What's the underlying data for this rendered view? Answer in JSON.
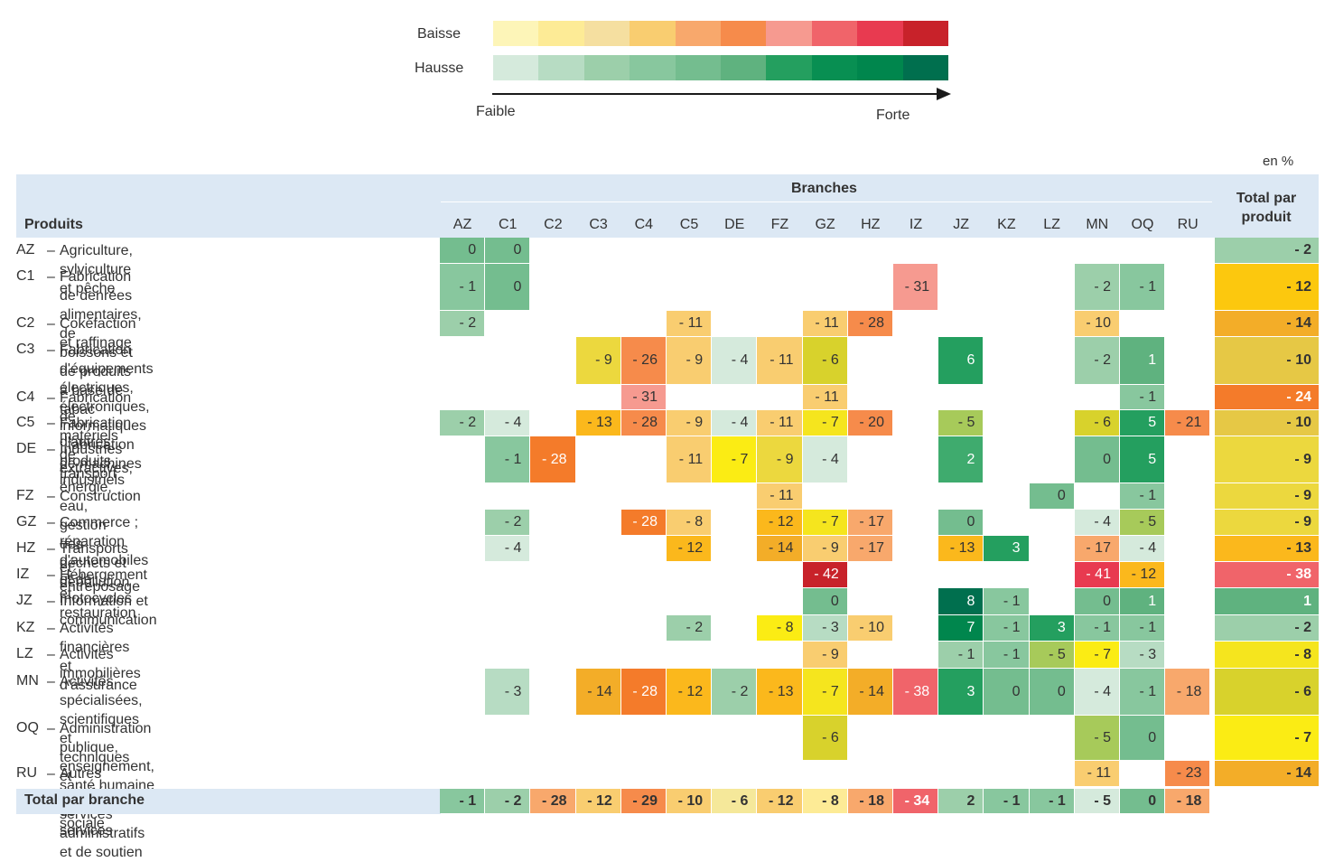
{
  "legend": {
    "baisse_label": "Baisse",
    "hausse_label": "Hausse",
    "low_label": "Faible",
    "high_label": "Forte",
    "baisse_colors": [
      "#fdf5b8",
      "#fdeb96",
      "#f5dfa0",
      "#f9cd70",
      "#f8a86c",
      "#f68b4b",
      "#f69a90",
      "#f0646a",
      "#e83a50",
      "#c8222a"
    ],
    "hausse_colors": [
      "#d5eadc",
      "#b7dcc3",
      "#9ccfaa",
      "#88c79e",
      "#74bd8f",
      "#5fb27f",
      "#249f5f",
      "#088f52",
      "#00864d",
      "#006f4e"
    ]
  },
  "unit_label": "en %",
  "header": {
    "produits_label": "Produits",
    "branches_label": "Branches",
    "total_label": "Total par\nproduit"
  },
  "chart_data": {
    "type": "heatmap",
    "columns": [
      "AZ",
      "C1",
      "C2",
      "C3",
      "C4",
      "C5",
      "DE",
      "FZ",
      "GZ",
      "HZ",
      "IZ",
      "JZ",
      "KZ",
      "LZ",
      "MN",
      "OQ",
      "RU"
    ],
    "rows": [
      {
        "code": "AZ",
        "label": "Agriculture, sylviculture et pêche",
        "cells": {
          "AZ": [
            "0",
            "#74bd8f"
          ],
          "C1": [
            "0",
            "#74bd8f"
          ]
        },
        "total": [
          "- 2",
          "#9ccfaa"
        ]
      },
      {
        "code": "C1",
        "label": "Fabrication de denrées alimentaires, de\nboissons et de produits à base de tabac",
        "cells": {
          "AZ": [
            "- 1",
            "#88c79e"
          ],
          "C1": [
            "0",
            "#74bd8f"
          ],
          "IZ": [
            "- 31",
            "#f69a90"
          ],
          "MN": [
            "- 2",
            "#9ccfaa"
          ],
          "OQ": [
            "- 1",
            "#88c79e"
          ]
        },
        "total": [
          "- 12",
          "#fcc80e"
        ]
      },
      {
        "code": "C2",
        "label": "Cokéfaction et raffinage",
        "cells": {
          "AZ": [
            "- 2",
            "#9ccfaa"
          ],
          "C5": [
            "- 11",
            "#f9cd70"
          ],
          "GZ": [
            "- 11",
            "#f9cd70"
          ],
          "HZ": [
            "- 28",
            "#f68b4b"
          ],
          "MN": [
            "- 10",
            "#f9cd70"
          ]
        },
        "total": [
          "- 14",
          "#f3ad28"
        ]
      },
      {
        "code": "C3",
        "label": "Fabrication d'équipements électriques, électroniques,\ninformatiques ; fabrication de machines",
        "cells": {
          "C3": [
            "- 9",
            "#ecd83e"
          ],
          "C4": [
            "- 26",
            "#f68b4b"
          ],
          "C5": [
            "- 9",
            "#f9cd70"
          ],
          "DE": [
            "- 4",
            "#d5eadc"
          ],
          "FZ": [
            "- 11",
            "#f9cd70"
          ],
          "GZ": [
            "- 6",
            "#d8d22c"
          ],
          "JZ": [
            "6",
            "#249f5f"
          ],
          "MN": [
            "- 2",
            "#9ccfaa"
          ],
          "OQ": [
            "1",
            "#5fb27f"
          ]
        },
        "total": [
          "- 10",
          "#e6c845"
        ]
      },
      {
        "code": "C4",
        "label": "Fabrication de matériels de transport",
        "cells": {
          "C4": [
            "- 31",
            "#f69a90"
          ],
          "GZ": [
            "- 11",
            "#f9cd70"
          ],
          "OQ": [
            "- 1",
            "#88c79e"
          ]
        },
        "total": [
          "- 24",
          "#f47b2a"
        ]
      },
      {
        "code": "C5",
        "label": "Fabrication d'autres produits industriels",
        "cells": {
          "AZ": [
            "- 2",
            "#9ccfaa"
          ],
          "C1": [
            "- 4",
            "#d5eadc"
          ],
          "C3": [
            "- 13",
            "#fbb81c"
          ],
          "C4": [
            "- 28",
            "#f68b4b"
          ],
          "C5": [
            "- 9",
            "#f9cd70"
          ],
          "DE": [
            "- 4",
            "#d5eadc"
          ],
          "FZ": [
            "- 11",
            "#f9cd70"
          ],
          "GZ": [
            "- 7",
            "#f5e51e"
          ],
          "HZ": [
            "- 20",
            "#f68b4b"
          ],
          "JZ": [
            "- 5",
            "#a7ca5a"
          ],
          "MN": [
            "- 6",
            "#d8d22c"
          ],
          "OQ": [
            "5",
            "#249f5f"
          ],
          "RU": [
            "- 21",
            "#f68b4b"
          ]
        },
        "total": [
          "- 10",
          "#e6c845"
        ]
      },
      {
        "code": "DE",
        "label": "Industries extractives, énergie, eau,\ngestion des déchets et dépollution",
        "cells": {
          "C1": [
            "- 1",
            "#88c79e"
          ],
          "C2": [
            "- 28",
            "#f47b2a"
          ],
          "C5": [
            "- 11",
            "#f9cd70"
          ],
          "DE": [
            "- 7",
            "#fbec14"
          ],
          "FZ": [
            "- 9",
            "#ecd83e"
          ],
          "GZ": [
            "- 4",
            "#d5eadc"
          ],
          "JZ": [
            "2",
            "#3fab6e"
          ],
          "MN": [
            "0",
            "#74bd8f"
          ],
          "OQ": [
            "5",
            "#249f5f"
          ]
        },
        "total": [
          "- 9",
          "#ecd83e"
        ]
      },
      {
        "code": "FZ",
        "label": "Construction",
        "cells": {
          "FZ": [
            "- 11",
            "#f9cd70"
          ],
          "LZ": [
            "0",
            "#74bd8f"
          ],
          "OQ": [
            "- 1",
            "#88c79e"
          ]
        },
        "total": [
          "- 9",
          "#ecd83e"
        ]
      },
      {
        "code": "GZ",
        "label": "Commerce ; réparation d'automobiles et de motocycles",
        "cells": {
          "C1": [
            "- 2",
            "#9ccfaa"
          ],
          "C4": [
            "- 28",
            "#f47b2a"
          ],
          "C5": [
            "- 8",
            "#f9cd70"
          ],
          "FZ": [
            "- 12",
            "#fbb81c"
          ],
          "GZ": [
            "- 7",
            "#f5e51e"
          ],
          "HZ": [
            "- 17",
            "#f8a86c"
          ],
          "JZ": [
            "0",
            "#74bd8f"
          ],
          "MN": [
            "- 4",
            "#d5eadc"
          ],
          "OQ": [
            "- 5",
            "#a7ca5a"
          ]
        },
        "total": [
          "- 9",
          "#ecd83e"
        ]
      },
      {
        "code": "HZ",
        "label": "Transports et entreposage",
        "cells": {
          "C1": [
            "- 4",
            "#d5eadc"
          ],
          "C5": [
            "- 12",
            "#fbb81c"
          ],
          "FZ": [
            "- 14",
            "#f3ad28"
          ],
          "GZ": [
            "- 9",
            "#f9cd70"
          ],
          "HZ": [
            "- 17",
            "#f8a86c"
          ],
          "JZ": [
            "- 13",
            "#fbb81c"
          ],
          "KZ": [
            "3",
            "#249f5f"
          ],
          "MN": [
            "- 17",
            "#f8a86c"
          ],
          "OQ": [
            "- 4",
            "#d5eadc"
          ]
        },
        "total": [
          "- 13",
          "#fbb81c"
        ]
      },
      {
        "code": "IZ",
        "label": "Hébergement et restauration",
        "cells": {
          "GZ": [
            "- 42",
            "#c8222a"
          ],
          "MN": [
            "- 41",
            "#e83a50"
          ],
          "OQ": [
            "- 12",
            "#fbb81c"
          ]
        },
        "total": [
          "- 38",
          "#f0646a"
        ]
      },
      {
        "code": "JZ",
        "label": "Information et communication",
        "cells": {
          "GZ": [
            "0",
            "#74bd8f"
          ],
          "JZ": [
            "8",
            "#006f4e"
          ],
          "KZ": [
            "- 1",
            "#88c79e"
          ],
          "MN": [
            "0",
            "#74bd8f"
          ],
          "OQ": [
            "1",
            "#5fb27f"
          ]
        },
        "total": [
          "1",
          "#5fb27f"
        ]
      },
      {
        "code": "KZ",
        "label": "Activités financières et d'assurance",
        "cells": {
          "C5": [
            "- 2",
            "#9ccfaa"
          ],
          "FZ": [
            "- 8",
            "#fbec14"
          ],
          "GZ": [
            "- 3",
            "#b7dcc3"
          ],
          "HZ": [
            "- 10",
            "#f9cd70"
          ],
          "JZ": [
            "7",
            "#00864d"
          ],
          "KZ": [
            "- 1",
            "#88c79e"
          ],
          "LZ": [
            "3",
            "#249f5f"
          ],
          "MN": [
            "- 1",
            "#88c79e"
          ],
          "OQ": [
            "- 1",
            "#88c79e"
          ]
        },
        "total": [
          "- 2",
          "#9ccfaa"
        ]
      },
      {
        "code": "LZ",
        "label": "Activités immobilières",
        "cells": {
          "GZ": [
            "- 9",
            "#f9cd70"
          ],
          "JZ": [
            "- 1",
            "#9ccfaa"
          ],
          "KZ": [
            "- 1",
            "#88c79e"
          ],
          "LZ": [
            "- 5",
            "#a7ca5a"
          ],
          "MN": [
            "- 7",
            "#fbec14"
          ],
          "OQ": [
            "- 3",
            "#b7dcc3"
          ]
        },
        "total": [
          "- 8",
          "#f5e51e"
        ]
      },
      {
        "code": "MN",
        "label": "Activités spécialisées, scientifiques et techniques et\nactivités de services administratifs et de soutien",
        "cells": {
          "C1": [
            "- 3",
            "#b7dcc3"
          ],
          "C3": [
            "- 14",
            "#f3ad28"
          ],
          "C4": [
            "- 28",
            "#f47b2a"
          ],
          "C5": [
            "- 12",
            "#fbb81c"
          ],
          "DE": [
            "- 2",
            "#9ccfaa"
          ],
          "FZ": [
            "- 13",
            "#fbb81c"
          ],
          "GZ": [
            "- 7",
            "#f5e51e"
          ],
          "HZ": [
            "- 14",
            "#f3ad28"
          ],
          "IZ": [
            "- 38",
            "#f0646a"
          ],
          "JZ": [
            "3",
            "#249f5f"
          ],
          "KZ": [
            "0",
            "#74bd8f"
          ],
          "LZ": [
            "0",
            "#74bd8f"
          ],
          "MN": [
            "- 4",
            "#d5eadc"
          ],
          "OQ": [
            "- 1",
            "#88c79e"
          ],
          "RU": [
            "- 18",
            "#f8a86c"
          ]
        },
        "total": [
          "- 6",
          "#d8d22c"
        ]
      },
      {
        "code": "OQ",
        "label": "Administration publique, enseignement,\nsanté humaine et action sociale",
        "cells": {
          "GZ": [
            "- 6",
            "#d8d22c"
          ],
          "MN": [
            "- 5",
            "#a7ca5a"
          ],
          "OQ": [
            "0",
            "#74bd8f"
          ]
        },
        "total": [
          "- 7",
          "#fbec14"
        ]
      },
      {
        "code": "RU",
        "label": "Autres activités de services",
        "cells": {
          "MN": [
            "- 11",
            "#f9cd70"
          ],
          "RU": [
            "- 23",
            "#f68b4b"
          ]
        },
        "total": [
          "- 14",
          "#f3ad28"
        ]
      }
    ],
    "total_row": {
      "label": "Total par branche",
      "cells": {
        "AZ": [
          "- 1",
          "#88c79e"
        ],
        "C1": [
          "- 2",
          "#9ccfaa"
        ],
        "C2": [
          "- 28",
          "#f8a86c"
        ],
        "C3": [
          "- 12",
          "#f9cd70"
        ],
        "C4": [
          "- 29",
          "#f68b4b"
        ],
        "C5": [
          "- 10",
          "#f9cd70"
        ],
        "DE": [
          "- 6",
          "#f5e89a"
        ],
        "FZ": [
          "- 12",
          "#f9cd70"
        ],
        "GZ": [
          "- 8",
          "#fdeb96"
        ],
        "HZ": [
          "- 18",
          "#f8a86c"
        ],
        "IZ": [
          "- 34",
          "#f0646a"
        ],
        "JZ": [
          "2",
          "#9ccfaa"
        ],
        "KZ": [
          "- 1",
          "#88c79e"
        ],
        "LZ": [
          "- 1",
          "#88c79e"
        ],
        "MN": [
          "- 5",
          "#d5eadc"
        ],
        "OQ": [
          "0",
          "#74bd8f"
        ],
        "RU": [
          "- 18",
          "#f8a86c"
        ]
      }
    }
  }
}
